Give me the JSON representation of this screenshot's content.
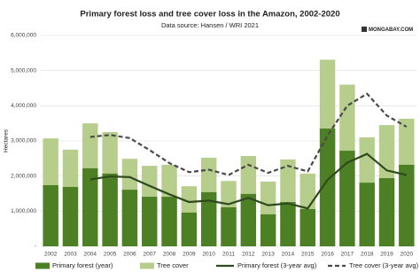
{
  "chart_data": {
    "type": "bar",
    "title": "Primary forest loss and tree cover loss in the Amazon, 2002-2020",
    "subtitle": "Data source: Hansen / WRI 2021",
    "logo": "MONGABAY.COM",
    "y_label": "Hectares",
    "categories": [
      "2002",
      "2003",
      "2004",
      "2005",
      "2006",
      "2007",
      "2008",
      "2009",
      "2010",
      "2011",
      "2012",
      "2013",
      "2014",
      "2015",
      "2016",
      "2017",
      "2018",
      "2019",
      "2020"
    ],
    "ylim": [
      0,
      6000000
    ],
    "yticks": [
      {
        "value": 0,
        "label": "-"
      },
      {
        "value": 1000000,
        "label": "1,000,000"
      },
      {
        "value": 2000000,
        "label": "2,000,000"
      },
      {
        "value": 3000000,
        "label": "3,000,000"
      },
      {
        "value": 4000000,
        "label": "4,000,000"
      },
      {
        "value": 5000000,
        "label": "5,000,000"
      },
      {
        "value": 6000000,
        "label": "6,000,000"
      }
    ],
    "grid": true,
    "legend": "bottom",
    "series": [
      {
        "name": "Primary forest (year)",
        "kind": "bar",
        "color": "#4d7f24",
        "values": [
          1740000,
          1690000,
          2220000,
          2070000,
          1610000,
          1410000,
          1410000,
          960000,
          1540000,
          1110000,
          1490000,
          910000,
          1260000,
          1060000,
          3350000,
          2720000,
          1810000,
          1940000,
          2320000
        ]
      },
      {
        "name": "Tree cover",
        "kind": "bar",
        "color": "#b6cd8c",
        "values": [
          3070000,
          2750000,
          3500000,
          3250000,
          2490000,
          2290000,
          2320000,
          1710000,
          2520000,
          1860000,
          2570000,
          1840000,
          2470000,
          2070000,
          5310000,
          4600000,
          3100000,
          3450000,
          3630000
        ]
      },
      {
        "name": "Primary forest (3-year avg)",
        "kind": "line",
        "color": "#2f4a1c",
        "dash": false,
        "values": [
          null,
          null,
          1900000,
          1990000,
          1970000,
          1720000,
          1480000,
          1260000,
          1300000,
          1200000,
          1380000,
          1170000,
          1220000,
          1080000,
          1890000,
          2380000,
          2630000,
          2160000,
          2030000
        ]
      },
      {
        "name": "Tree cover (3-year avg)",
        "kind": "line",
        "color": "#4a4a4a",
        "dash": true,
        "values": [
          null,
          null,
          3110000,
          3170000,
          3080000,
          2740000,
          2370000,
          2110000,
          2180000,
          2030000,
          2320000,
          2090000,
          2290000,
          2130000,
          3150000,
          4000000,
          4340000,
          3720000,
          3400000
        ]
      }
    ]
  }
}
